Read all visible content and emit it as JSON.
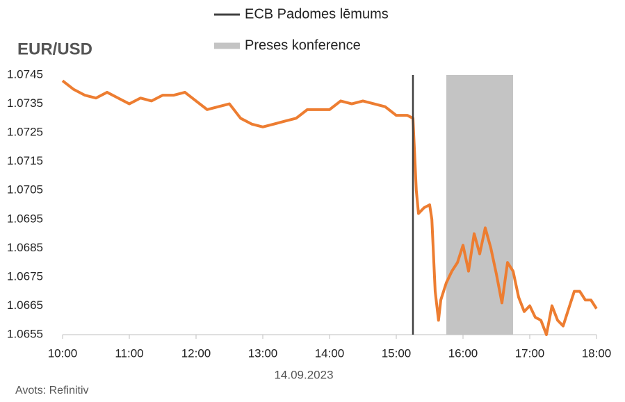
{
  "chart_data": {
    "type": "line",
    "title": "EUR/USD",
    "xlabel": "14.09.2023",
    "source": "Avots: Refinitiv",
    "x": [
      10,
      10.167,
      10.333,
      10.5,
      10.667,
      10.833,
      11,
      11.167,
      11.333,
      11.5,
      11.667,
      11.833,
      12,
      12.167,
      12.333,
      12.5,
      12.667,
      12.833,
      13,
      13.167,
      13.333,
      13.5,
      13.667,
      13.833,
      14,
      14.167,
      14.333,
      14.5,
      14.667,
      14.833,
      15,
      15.167,
      15.25,
      15.3,
      15.333,
      15.417,
      15.5,
      15.533,
      15.583,
      15.633,
      15.667,
      15.75,
      15.833,
      15.917,
      16,
      16.083,
      16.167,
      16.25,
      16.333,
      16.417,
      16.5,
      16.583,
      16.667,
      16.75,
      16.833,
      16.917,
      17,
      17.083,
      17.167,
      17.25,
      17.333,
      17.417,
      17.5,
      17.583,
      17.667,
      17.75,
      17.833,
      17.917,
      18
    ],
    "series": [
      {
        "name": "EUR/USD",
        "color": "#ed7d31",
        "values": [
          1.0743,
          1.074,
          1.0738,
          1.0737,
          1.0739,
          1.0737,
          1.0735,
          1.0737,
          1.0736,
          1.0738,
          1.0738,
          1.0739,
          1.0736,
          1.0733,
          1.0734,
          1.0735,
          1.073,
          1.0728,
          1.0727,
          1.0728,
          1.0729,
          1.073,
          1.0733,
          1.0733,
          1.0733,
          1.0736,
          1.0735,
          1.0736,
          1.0735,
          1.0734,
          1.0731,
          1.0731,
          1.073,
          1.0705,
          1.0697,
          1.0699,
          1.07,
          1.0695,
          1.067,
          1.066,
          1.0667,
          1.0673,
          1.0677,
          1.068,
          1.0686,
          1.0677,
          1.069,
          1.0683,
          1.0692,
          1.0685,
          1.0676,
          1.0666,
          1.068,
          1.0677,
          1.0668,
          1.0663,
          1.0665,
          1.0661,
          1.066,
          1.0655,
          1.0665,
          1.066,
          1.0658,
          1.0664,
          1.067,
          1.067,
          1.0667,
          1.0667,
          1.0664
        ]
      }
    ],
    "ecb_decision": {
      "label": "ECB Padomes lēmums",
      "x": 15.25,
      "color": "#404040"
    },
    "press_conference": {
      "label": "Preses konference",
      "x_start": 15.75,
      "x_end": 16.75,
      "color": "#c4c4c4"
    },
    "xlim": [
      10,
      18
    ],
    "xticks": [
      {
        "value": 10,
        "label": "10:00"
      },
      {
        "value": 11,
        "label": "11:00"
      },
      {
        "value": 12,
        "label": "12:00"
      },
      {
        "value": 13,
        "label": "13:00"
      },
      {
        "value": 14,
        "label": "14:00"
      },
      {
        "value": 15,
        "label": "15:00"
      },
      {
        "value": 16,
        "label": "16:00"
      },
      {
        "value": 17,
        "label": "17:00"
      },
      {
        "value": 18,
        "label": "18:00"
      }
    ],
    "ylim": [
      1.0655,
      1.0745
    ],
    "yticks": [
      1.0655,
      1.0665,
      1.0675,
      1.0685,
      1.0695,
      1.0705,
      1.0715,
      1.0725,
      1.0735,
      1.0745
    ]
  }
}
